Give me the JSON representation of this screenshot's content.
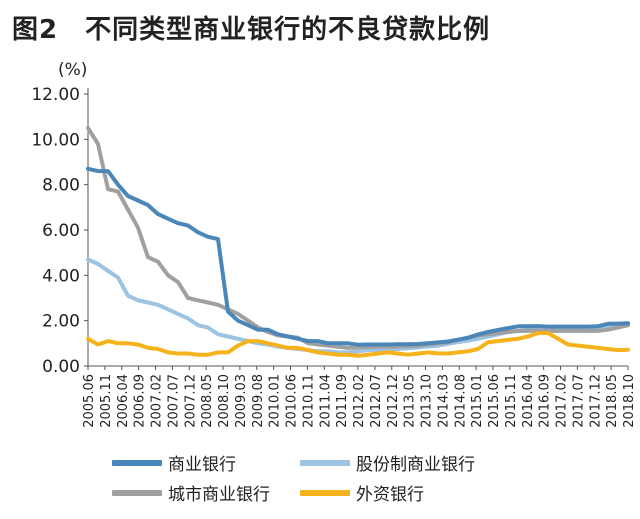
{
  "title": "图2　不同类型商业银行的不良贷款比例",
  "colors": {
    "commercial": "#4a86b8",
    "joint_stock": "#9cc3e2",
    "city": "#a0a0a0",
    "foreign": "#f5b21a"
  },
  "chart_data": {
    "type": "line",
    "unit": "(%)",
    "ylim": [
      0,
      12
    ],
    "yticks": [
      "0.00",
      "2.00",
      "4.00",
      "6.00",
      "8.00",
      "10.00",
      "12.00"
    ],
    "grid": false,
    "legend_position": "bottom",
    "x": [
      "2005.06",
      "2005.09",
      "2005.12",
      "2006.03",
      "2006.06",
      "2006.09",
      "2006.12",
      "2007.03",
      "2007.06",
      "2007.09",
      "2007.12",
      "2008.03",
      "2008.06",
      "2008.09",
      "2008.12",
      "2009.03",
      "2009.06",
      "2009.09",
      "2009.12",
      "2010.03",
      "2010.06",
      "2010.09",
      "2010.12",
      "2011.03",
      "2011.06",
      "2011.09",
      "2011.12",
      "2012.03",
      "2012.06",
      "2012.09",
      "2012.12",
      "2013.03",
      "2013.06",
      "2013.09",
      "2013.12",
      "2014.03",
      "2014.06",
      "2014.09",
      "2014.12",
      "2015.03",
      "2015.06",
      "2015.09",
      "2015.12",
      "2016.03",
      "2016.06",
      "2016.09",
      "2016.12",
      "2017.03",
      "2017.06",
      "2017.09",
      "2017.12",
      "2018.03",
      "2018.06",
      "2018.09",
      "2018.12"
    ],
    "x_tick_labels": [
      "2005.06",
      "2005.11",
      "2006.04",
      "2006.09",
      "2007.02",
      "2007.07",
      "2007.12",
      "2008.05",
      "2008.10",
      "2009.03",
      "2009.08",
      "2010.01",
      "2010.06",
      "2010.11",
      "2011.04",
      "2011.09",
      "2012.02",
      "2012.07",
      "2012.12",
      "2013.05",
      "2013.10",
      "2014.03",
      "2014.08",
      "2015.01",
      "2015.06",
      "2015.11",
      "2016.04",
      "2016.09",
      "2017.02",
      "2017.07",
      "2017.12",
      "2018.05",
      "2018.10"
    ],
    "series": [
      {
        "name": "商业银行",
        "color_key": "commercial",
        "values": [
          8.7,
          8.6,
          8.6,
          8.0,
          7.5,
          7.3,
          7.1,
          6.7,
          6.5,
          6.3,
          6.2,
          5.9,
          5.7,
          5.6,
          2.4,
          2.0,
          1.8,
          1.6,
          1.6,
          1.4,
          1.3,
          1.2,
          1.1,
          1.1,
          1.0,
          1.0,
          1.0,
          0.94,
          0.95,
          0.95,
          0.95,
          0.96,
          0.96,
          0.97,
          1.0,
          1.04,
          1.08,
          1.16,
          1.25,
          1.39,
          1.5,
          1.59,
          1.67,
          1.75,
          1.75,
          1.76,
          1.74,
          1.74,
          1.74,
          1.74,
          1.74,
          1.75,
          1.86,
          1.87,
          1.89
        ]
      },
      {
        "name": "股份制商业银行",
        "color_key": "joint_stock",
        "values": [
          4.7,
          4.5,
          4.2,
          3.9,
          3.1,
          2.9,
          2.8,
          2.7,
          2.5,
          2.3,
          2.1,
          1.8,
          1.7,
          1.4,
          1.3,
          1.2,
          1.1,
          1.0,
          0.95,
          0.85,
          0.8,
          0.75,
          0.7,
          0.65,
          0.65,
          0.6,
          0.6,
          0.65,
          0.7,
          0.72,
          0.72,
          0.75,
          0.78,
          0.82,
          0.86,
          0.9,
          0.98,
          1.05,
          1.12,
          1.2,
          1.3,
          1.4,
          1.5,
          1.55,
          1.6,
          1.65,
          1.7,
          1.7,
          1.7,
          1.7,
          1.7,
          1.72,
          1.72,
          1.75,
          1.8
        ]
      },
      {
        "name": "城市商业银行",
        "color_key": "city",
        "values": [
          10.5,
          9.8,
          7.8,
          7.7,
          6.9,
          6.1,
          4.8,
          4.6,
          4.0,
          3.7,
          3.0,
          2.9,
          2.8,
          2.7,
          2.5,
          2.3,
          2.0,
          1.7,
          1.5,
          1.35,
          1.3,
          1.25,
          1.0,
          0.95,
          0.9,
          0.85,
          0.8,
          0.82,
          0.84,
          0.85,
          0.85,
          0.86,
          0.88,
          0.9,
          0.95,
          1.0,
          1.05,
          1.15,
          1.25,
          1.35,
          1.4,
          1.45,
          1.5,
          1.55,
          1.55,
          1.55,
          1.55,
          1.55,
          1.55,
          1.55,
          1.55,
          1.55,
          1.6,
          1.7,
          1.8
        ]
      },
      {
        "name": "外资银行",
        "color_key": "foreign",
        "values": [
          1.2,
          0.95,
          1.1,
          1.0,
          1.0,
          0.95,
          0.8,
          0.75,
          0.6,
          0.55,
          0.55,
          0.5,
          0.5,
          0.6,
          0.6,
          0.9,
          1.1,
          1.1,
          1.0,
          0.9,
          0.8,
          0.8,
          0.7,
          0.6,
          0.55,
          0.5,
          0.5,
          0.45,
          0.5,
          0.55,
          0.6,
          0.55,
          0.5,
          0.55,
          0.6,
          0.55,
          0.55,
          0.6,
          0.65,
          0.75,
          1.05,
          1.1,
          1.15,
          1.2,
          1.3,
          1.45,
          1.45,
          1.2,
          0.95,
          0.9,
          0.85,
          0.8,
          0.75,
          0.7,
          0.72
        ]
      }
    ]
  }
}
